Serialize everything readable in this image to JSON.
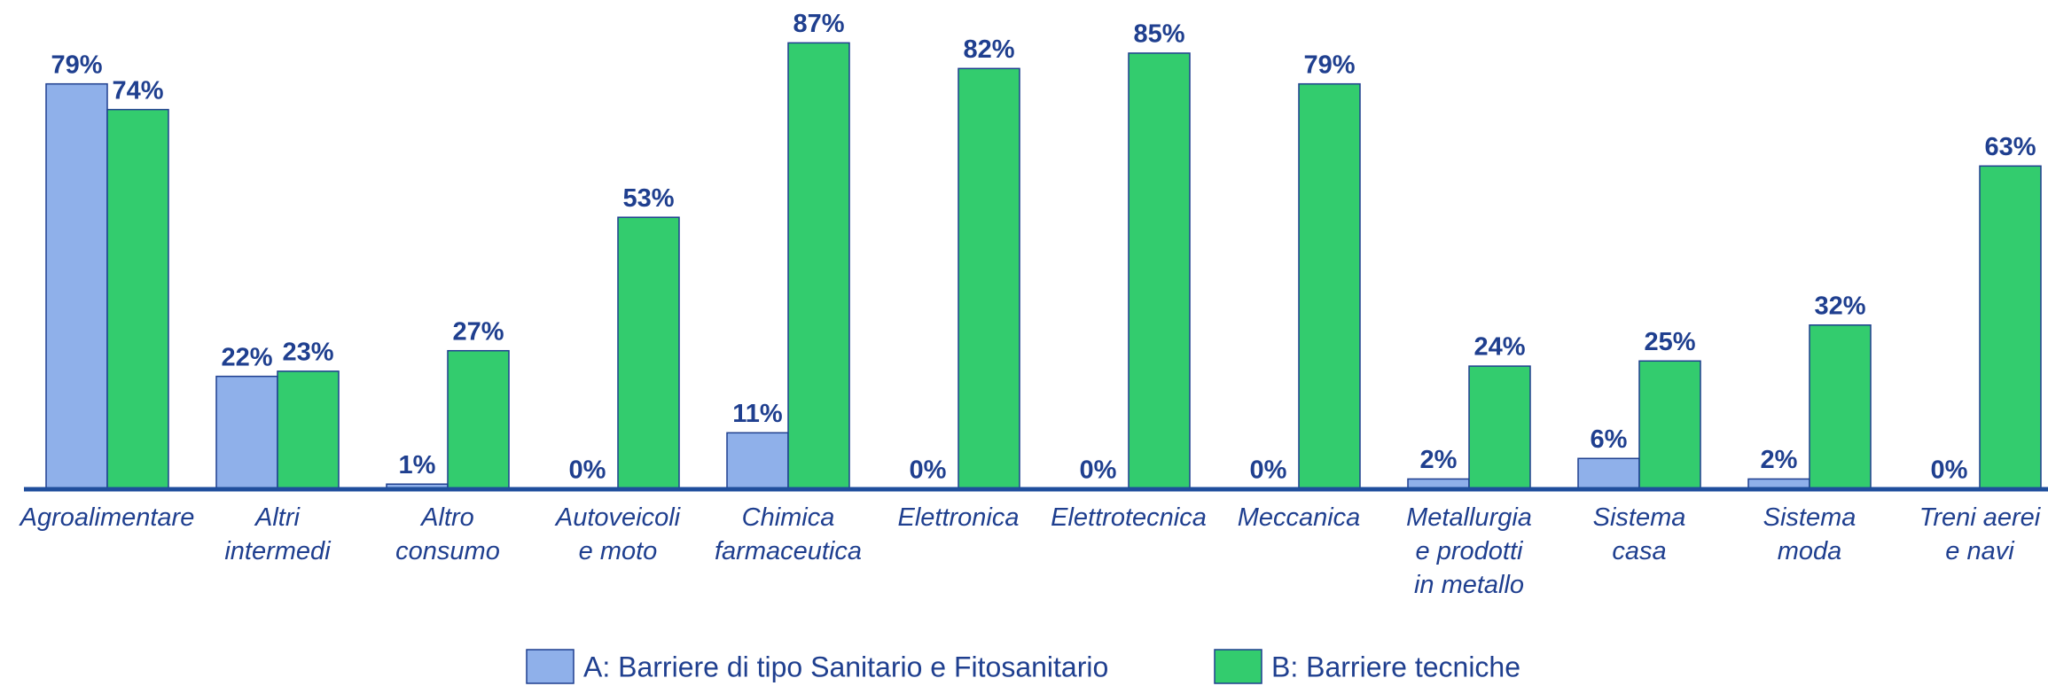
{
  "chart_data": {
    "type": "bar",
    "categories": [
      "Agroalimentare",
      "Altri\nintermedi",
      "Altro\nconsumo",
      "Autoveicoli\ne moto",
      "Chimica\nfarmaceutica",
      "Elettronica",
      "Elettrotecnica",
      "Meccanica",
      "Metallurgia\ne prodotti\nin metallo",
      "Sistema\ncasa",
      "Sistema\nmoda",
      "Treni aerei\ne navi"
    ],
    "series": [
      {
        "name": "A: Barriere di tipo Sanitario e Fitosanitario",
        "color": "#8fb0ea",
        "values": [
          79,
          22,
          1,
          0,
          11,
          0,
          0,
          0,
          2,
          6,
          2,
          0
        ],
        "value_labels": [
          "79%",
          "22%",
          "1%",
          "0%",
          "11%",
          "0%",
          "0%",
          "0%",
          "2%",
          "6%",
          "2%",
          "0%"
        ]
      },
      {
        "name": "B: Barriere tecniche",
        "color": "#33cc6e",
        "values": [
          74,
          23,
          27,
          53,
          87,
          82,
          85,
          79,
          24,
          25,
          32,
          63
        ],
        "value_labels": [
          "74%",
          "23%",
          "27%",
          "53%",
          "87%",
          "82%",
          "85%",
          "79%",
          "24%",
          "25%",
          "32%",
          "63%"
        ]
      }
    ],
    "ylim": [
      0,
      90
    ]
  }
}
